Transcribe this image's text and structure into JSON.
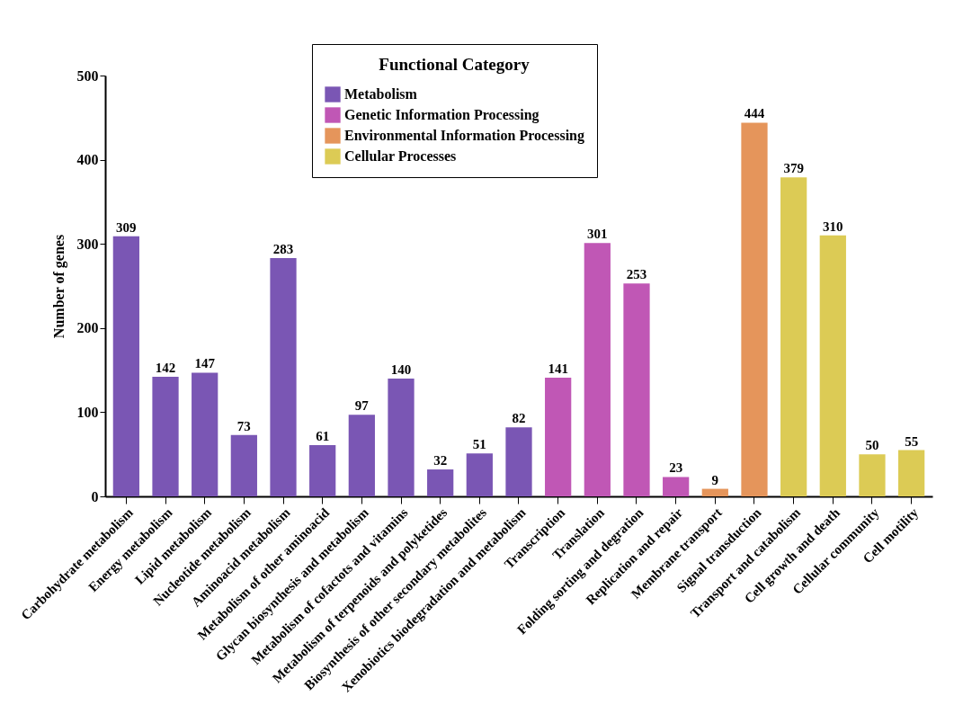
{
  "chart_data": {
    "type": "bar",
    "categories": [
      "Carbohydrate metabolism",
      "Energy metabolism",
      "Lipid metabolism",
      "Nucleotide metabolism",
      "Aminoacid metabolism",
      "Metabolism of other aminoacid",
      "Glycan biosynthesis and metabolism",
      "Metabolism of cofactots and vitamins",
      "Metabolism of terpenoids and polyketides",
      "Biosynthesis of other secondary metabolites",
      "Xenobiotics biodegradation and metabolism",
      "Transcription",
      "Translation",
      "Folding sorting and degration",
      "Replication and repair",
      "Membrane transport",
      "Signal transduction",
      "Transport and catabolism",
      "Cell growth and death",
      "Cellular community",
      "Cell motility"
    ],
    "series": [
      {
        "name": "Metabolism",
        "color": "#7a56b4",
        "values": [
          309,
          142,
          147,
          73,
          283,
          61,
          97,
          140,
          32,
          51,
          82,
          null,
          null,
          null,
          null,
          null,
          null,
          null,
          null,
          null,
          null
        ]
      },
      {
        "name": "Genetic Information Processing",
        "color": "#c057b5",
        "values": [
          null,
          null,
          null,
          null,
          null,
          null,
          null,
          null,
          null,
          null,
          null,
          141,
          301,
          253,
          23,
          null,
          null,
          null,
          null,
          null,
          null
        ]
      },
      {
        "name": "Environmental Information Processing",
        "color": "#e5955b",
        "values": [
          null,
          null,
          null,
          null,
          null,
          null,
          null,
          null,
          null,
          null,
          null,
          null,
          null,
          null,
          null,
          9,
          444,
          null,
          null,
          null,
          null
        ]
      },
      {
        "name": "Cellular Processes",
        "color": "#dccb55",
        "values": [
          null,
          null,
          null,
          null,
          null,
          null,
          null,
          null,
          null,
          null,
          null,
          null,
          null,
          null,
          null,
          null,
          null,
          379,
          310,
          50,
          55
        ]
      }
    ],
    "ylabel": "Number of genes",
    "ylim": [
      0,
      500
    ],
    "yticks": [
      0,
      100,
      200,
      300,
      400,
      500
    ],
    "legend": "top",
    "legend_title": "Functional Category",
    "data_labels": true
  }
}
